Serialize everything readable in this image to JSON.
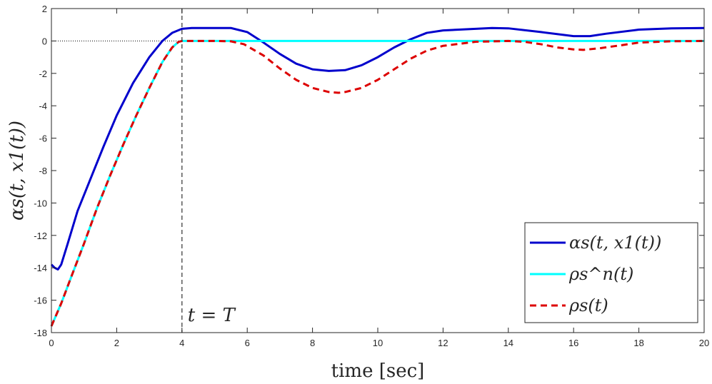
{
  "chart_data": {
    "type": "line",
    "xlabel": "time [sec]",
    "ylabel": "αs(t, x1(t))",
    "xlim": [
      0,
      20
    ],
    "ylim": [
      -18,
      2
    ],
    "xticks": [
      0,
      2,
      4,
      6,
      8,
      10,
      12,
      14,
      16,
      18,
      20
    ],
    "yticks": [
      -18,
      -16,
      -14,
      -12,
      -10,
      -8,
      -6,
      -4,
      -2,
      0,
      2
    ],
    "xtick_labels": [
      "0",
      "2",
      "4",
      "6",
      "8",
      "10",
      "12",
      "14",
      "16",
      "18",
      "20"
    ],
    "ytick_labels": [
      "-18",
      "-16",
      "-14",
      "-12",
      "-10",
      "-8",
      "-6",
      "-4",
      "-2",
      "0",
      "2"
    ],
    "grid": false,
    "legend_position": "bottom-right",
    "annotation": {
      "text": "t = T",
      "x": 4,
      "y": -16.9
    },
    "vline": {
      "x": 4,
      "style": "dashed",
      "color": "#404040"
    },
    "hline": {
      "y": 0,
      "style": "dotted",
      "color": "#000000"
    },
    "series": [
      {
        "name": "αs(t, x1(t))",
        "color": "#0000cc",
        "dash": "solid",
        "x": [
          0,
          0.1,
          0.2,
          0.3,
          0.5,
          0.8,
          1.2,
          1.6,
          2.0,
          2.5,
          3.0,
          3.4,
          3.7,
          4.0,
          4.3,
          5.0,
          5.5,
          6.0,
          6.5,
          7.0,
          7.5,
          8.0,
          8.5,
          9.0,
          9.5,
          10.0,
          10.5,
          11.0,
          11.5,
          12.0,
          13.0,
          13.5,
          14.0,
          15.0,
          16.0,
          16.5,
          17.0,
          18.0,
          19.0,
          20.0
        ],
        "values": [
          -13.8,
          -14.0,
          -14.1,
          -13.8,
          -12.5,
          -10.5,
          -8.5,
          -6.5,
          -4.6,
          -2.6,
          -1.0,
          0.0,
          0.5,
          0.75,
          0.8,
          0.8,
          0.8,
          0.55,
          -0.1,
          -0.8,
          -1.4,
          -1.75,
          -1.85,
          -1.8,
          -1.5,
          -1.0,
          -0.4,
          0.1,
          0.5,
          0.65,
          0.75,
          0.8,
          0.78,
          0.55,
          0.3,
          0.3,
          0.45,
          0.7,
          0.78,
          0.8
        ]
      },
      {
        "name": "ρs^n(t)",
        "color": "#00ffff",
        "dash": "solid",
        "x": [
          0,
          0.3,
          0.6,
          1.0,
          1.4,
          1.8,
          2.2,
          2.6,
          3.0,
          3.4,
          3.7,
          3.9,
          4.0,
          4.5,
          6.0,
          8.0,
          10.0,
          12.0,
          14.0,
          16.0,
          18.0,
          20.0
        ],
        "values": [
          -17.6,
          -16.2,
          -14.6,
          -12.5,
          -10.3,
          -8.3,
          -6.4,
          -4.6,
          -2.9,
          -1.3,
          -0.4,
          -0.05,
          0,
          0,
          0,
          0,
          0,
          0,
          0,
          0,
          0,
          0
        ]
      },
      {
        "name": "ρs(t)",
        "color": "#dd0000",
        "dash": "dashed",
        "x": [
          0,
          0.3,
          0.6,
          1.0,
          1.4,
          1.8,
          2.2,
          2.6,
          3.0,
          3.4,
          3.7,
          3.9,
          4.0,
          4.5,
          5.0,
          5.5,
          5.9,
          6.5,
          7.0,
          7.5,
          8.0,
          8.5,
          8.8,
          9.0,
          9.5,
          10.0,
          10.5,
          11.0,
          11.5,
          12.0,
          13.0,
          14.0,
          14.5,
          15.0,
          15.5,
          16.0,
          16.3,
          16.8,
          17.5,
          18.0,
          19.0,
          20.0
        ],
        "values": [
          -17.6,
          -16.2,
          -14.6,
          -12.5,
          -10.3,
          -8.3,
          -6.4,
          -4.6,
          -2.9,
          -1.3,
          -0.4,
          -0.05,
          0,
          0,
          0,
          -0.02,
          -0.2,
          -0.9,
          -1.7,
          -2.4,
          -2.9,
          -3.15,
          -3.2,
          -3.15,
          -2.9,
          -2.4,
          -1.75,
          -1.1,
          -0.6,
          -0.3,
          -0.05,
          0,
          -0.05,
          -0.2,
          -0.4,
          -0.52,
          -0.55,
          -0.45,
          -0.25,
          -0.1,
          -0.02,
          0
        ]
      }
    ]
  }
}
